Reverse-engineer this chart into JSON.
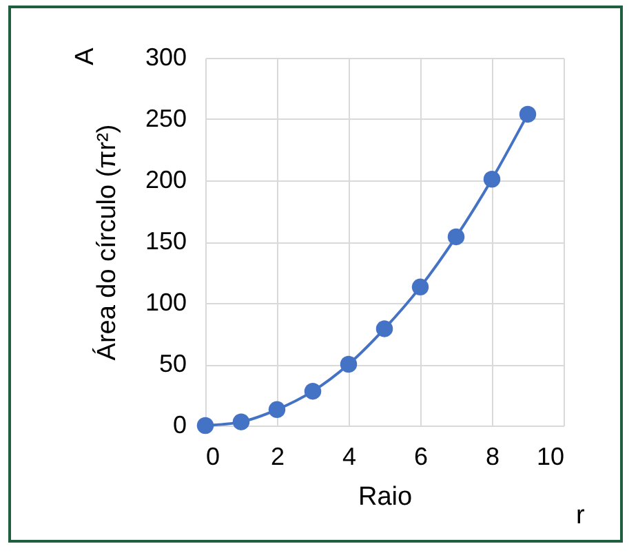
{
  "chart_data": {
    "type": "line",
    "ylabel": "Área do círculo (πr²)",
    "xlabel": "Raio",
    "annotations": [
      "A",
      "r"
    ],
    "x": [
      0,
      1,
      2,
      3,
      4,
      5,
      6,
      7,
      8,
      9
    ],
    "series": [
      {
        "color": "#4472c4",
        "values": [
          0,
          3,
          13,
          28,
          50,
          79,
          113,
          154,
          201,
          254
        ]
      }
    ],
    "xlim": [
      0,
      10
    ],
    "xticks": [
      0,
      2,
      4,
      6,
      8,
      10
    ],
    "ylim": [
      0,
      300
    ],
    "yticks": [
      0,
      50,
      100,
      150,
      200,
      250,
      300
    ],
    "grid": true,
    "marker": "circle",
    "line_style": "solid"
  }
}
